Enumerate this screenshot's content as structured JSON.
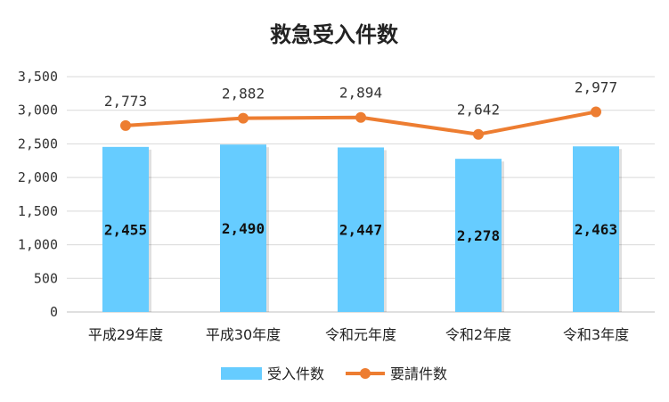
{
  "chart_data": {
    "type": "bar+line",
    "title": "救急受入件数",
    "categories": [
      "平成29年度",
      "平成30年度",
      "令和元年度",
      "令和2年度",
      "令和3年度"
    ],
    "series": [
      {
        "name": "受入件数",
        "type": "bar",
        "color": "#66CCFF",
        "values": [
          2455,
          2490,
          2447,
          2278,
          2463
        ],
        "labels": [
          "2,455",
          "2,490",
          "2,447",
          "2,278",
          "2,463"
        ]
      },
      {
        "name": "要請件数",
        "type": "line",
        "color": "#ED7D31",
        "values": [
          2773,
          2882,
          2894,
          2642,
          2977
        ],
        "labels": [
          "2,773",
          "2,882",
          "2,894",
          "2,642",
          "2,977"
        ]
      }
    ],
    "yticks": [
      0,
      500,
      1000,
      1500,
      2000,
      2500,
      3000,
      3500
    ],
    "ytick_labels": [
      "0",
      "500",
      "1,000",
      "1,500",
      "2,000",
      "2,500",
      "3,000",
      "3,500"
    ],
    "ylim": [
      0,
      3500
    ],
    "grid": true,
    "legend": "bottom"
  }
}
